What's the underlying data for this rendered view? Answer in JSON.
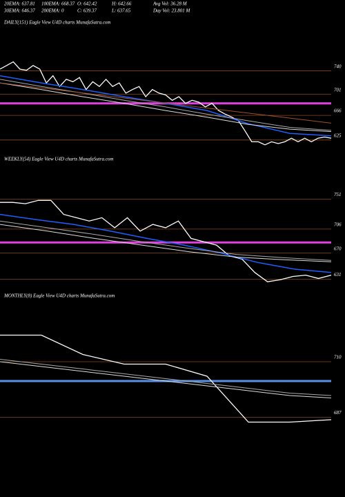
{
  "header": [
    [
      "20EMA: 637.81",
      "100EMA: 668.37",
      "O: 642.42",
      "H: 642.66",
      "Avg Vol: 36.28  M"
    ],
    [
      "30EMA: 646.37",
      "200EMA: 0",
      "C: 639.37",
      "L: 637.65",
      "Day Vol: 23.801 M"
    ]
  ],
  "chart_data": [
    {
      "type": "line",
      "title": "DAILY(151) Eagle  View  U4D charts MunafaSutra.com",
      "ylim": [
        611,
        812
      ],
      "yticks": [
        740,
        701,
        666,
        625
      ],
      "grid": true,
      "grid_color": "#8b4a1c",
      "hlines": [
        {
          "value": 686,
          "color": "#e040e0"
        }
      ],
      "series": [
        {
          "color": "#ffffff",
          "width": 1.3,
          "values": [
            743,
            749,
            755,
            743,
            741,
            749,
            743,
            720,
            732,
            714,
            726,
            722,
            729,
            709,
            722,
            714,
            726,
            714,
            720,
            703,
            709,
            714,
            697,
            709,
            703,
            700,
            691,
            697,
            686,
            691,
            688,
            680,
            686,
            674,
            668,
            663,
            657,
            640,
            622,
            622,
            617,
            622,
            619,
            622,
            628,
            622,
            628,
            622,
            628,
            630,
            628
          ]
        },
        {
          "color": "#1f5fff",
          "width": 1.5,
          "values": [
            732,
            720,
            709,
            697,
            686,
            674,
            652,
            636,
            632
          ]
        },
        {
          "color": "#aaaaaa",
          "width": 1,
          "values": [
            726,
            714,
            703,
            691,
            680,
            668,
            657,
            646,
            641
          ]
        },
        {
          "color": "#dddddd",
          "width": 1,
          "values": [
            720,
            709,
            697,
            686,
            674,
            663,
            651,
            643,
            639
          ]
        },
        {
          "color": "#a0522d",
          "width": 1,
          "values": [
            720,
            653
          ]
        }
      ]
    },
    {
      "type": "line",
      "title": "WEEKLY(54) Eagle  View  U4D charts MunafaSutra.com",
      "ylim": [
        620,
        801
      ],
      "yticks": [
        751,
        706,
        670,
        631
      ],
      "grid": true,
      "grid_color": "#8b4a1c",
      "hlines": [
        {
          "value": 686,
          "color": "#e040e0"
        }
      ],
      "series": [
        {
          "color": "#ffffff",
          "width": 1.3,
          "values": [
            746,
            746,
            744,
            749,
            749,
            728,
            723,
            718,
            723,
            708,
            723,
            703,
            713,
            708,
            718,
            692,
            687,
            682,
            666,
            661,
            641,
            627,
            630,
            635,
            637,
            632,
            637
          ]
        },
        {
          "color": "#1f5fff",
          "width": 1.5,
          "values": [
            728,
            720,
            713,
            703,
            692,
            682,
            670,
            656,
            646,
            641
          ]
        },
        {
          "color": "#aaaaaa",
          "width": 1,
          "values": [
            718,
            708,
            698,
            687,
            677,
            668,
            663,
            659
          ]
        },
        {
          "color": "#dddddd",
          "width": 1,
          "values": [
            713,
            703,
            692,
            682,
            672,
            664,
            660,
            657
          ]
        }
      ]
    },
    {
      "type": "line",
      "title": "MONTHLY(8) Eagle  View  U4D charts MunafaSutra.com",
      "ylim": [
        684,
        734
      ],
      "yticks": [
        710,
        687
      ],
      "grid": true,
      "grid_color": "#8b4a1c",
      "hlines": [
        {
          "value": 702,
          "color": "#5b8fe8"
        }
      ],
      "series": [
        {
          "color": "#ffffff",
          "width": 1.3,
          "values": [
            721,
            721,
            713,
            709,
            709,
            704,
            685,
            685,
            686
          ]
        },
        {
          "color": "#aaaaaa",
          "width": 1,
          "values": [
            711,
            709,
            707,
            705,
            703,
            701,
            699,
            697,
            696
          ]
        },
        {
          "color": "#dddddd",
          "width": 1,
          "values": [
            710,
            708,
            706,
            704,
            702,
            700,
            698,
            696,
            695
          ]
        }
      ]
    }
  ]
}
